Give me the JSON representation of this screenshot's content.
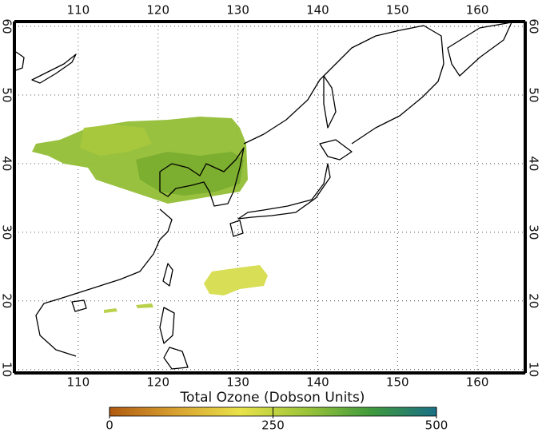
{
  "map": {
    "xlim": [
      102,
      166
    ],
    "ylim": [
      9.5,
      60.7
    ],
    "xticks": [
      110,
      120,
      130,
      140,
      150,
      160
    ],
    "yticks": [
      10,
      20,
      30,
      40,
      50,
      60
    ],
    "colorbar": {
      "title": "Total Ozone (Dobson Units)",
      "lim": [
        0,
        500
      ],
      "ticks": [
        0,
        250,
        500
      ]
    }
  }
}
